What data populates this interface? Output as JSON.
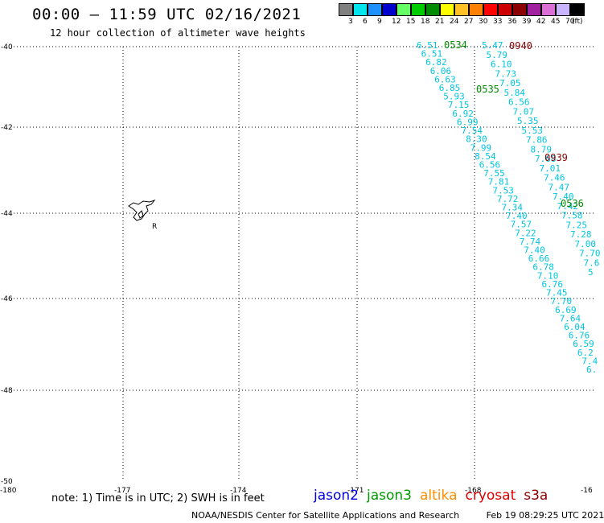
{
  "header": {
    "title": "00:00 – 11:59 UTC 02/16/2021",
    "subtitle": "12 hour collection of altimeter wave heights"
  },
  "legend": {
    "unit": "(ft)",
    "levels": [
      {
        "label": "3",
        "color": "#808080"
      },
      {
        "label": "6",
        "color": "#00e5ee"
      },
      {
        "label": "9",
        "color": "#1e90ff"
      },
      {
        "label": "12",
        "color": "#0000cd"
      },
      {
        "label": "15",
        "color": "#66ff66"
      },
      {
        "label": "18",
        "color": "#00cd00"
      },
      {
        "label": "21",
        "color": "#008b00"
      },
      {
        "label": "24",
        "color": "#ffff00"
      },
      {
        "label": "27",
        "color": "#ffc125"
      },
      {
        "label": "30",
        "color": "#ff7f00"
      },
      {
        "label": "33",
        "color": "#ff0000"
      },
      {
        "label": "36",
        "color": "#cd0000"
      },
      {
        "label": "39",
        "color": "#8b0000"
      },
      {
        "label": "42",
        "color": "#a020a0"
      },
      {
        "label": "45",
        "color": "#da70d6"
      },
      {
        "label": "70",
        "color": "#c8b4ff"
      },
      {
        "label": "",
        "color": "#000000"
      }
    ]
  },
  "axes": {
    "lat_labels": [
      "-40",
      "-42",
      "-44",
      "-46",
      "-48",
      "-50"
    ],
    "lon_labels": [
      "-180",
      "-177",
      "-174",
      "-171",
      "-168",
      "-16"
    ]
  },
  "tracks": {
    "colors": {
      "swh": "#00c5e0",
      "jason3_time": "#008b00",
      "cryosat_time": "#8b0000"
    },
    "time_labels": [
      {
        "text": "0534",
        "mission": "jason3"
      },
      {
        "text": "0940",
        "mission": "cryosat"
      },
      {
        "text": "0535",
        "mission": "jason3"
      },
      {
        "text": "0939",
        "mission": "cryosat"
      },
      {
        "text": "0536",
        "mission": "jason3"
      }
    ],
    "track_a": [
      "6.51",
      "6.51",
      "6.82",
      "6.06",
      "6.63",
      "6.85",
      "5.93",
      "7.15",
      "6.92",
      "6.99",
      "7.54",
      "8.30",
      "7.99",
      "8.54",
      "6.56",
      "7.55",
      "7.81",
      "7.53",
      "7.72",
      "7.34",
      "7.40",
      "7.57",
      "7.22",
      "7.74",
      "7.40",
      "6.66",
      "6.78",
      "7.10",
      "6.76",
      "7.45",
      "7.70",
      "6.69",
      "7.64",
      "6.04",
      "6.76",
      "6.59",
      "6.2",
      "7.4",
      "6."
    ],
    "track_b": [
      "5.47",
      "5.79",
      "6.10",
      "7.73",
      "7.05",
      "5.84",
      "6.56",
      "7.07",
      "5.35",
      "5.53",
      "7.86",
      "8.79",
      "7.68",
      "7.01",
      "7.46",
      "7.47",
      "7.40",
      "7.42",
      "7.58",
      "7.25",
      "7.28",
      "7.00",
      "7.70",
      "7.6",
      "5"
    ]
  },
  "island": {
    "label": "R"
  },
  "note": "note: 1) Time is in UTC; 2) SWH is in feet",
  "missions": [
    {
      "name": "jason2",
      "color": "#0000dd"
    },
    {
      "name": "jason3",
      "color": "#009900"
    },
    {
      "name": "altika",
      "color": "#ff8c00"
    },
    {
      "name": "cryosat",
      "color": "#dd0000"
    },
    {
      "name": "s3a",
      "color": "#8b0000"
    }
  ],
  "footer": {
    "credit": "NOAA/NESDIS Center for Satellite Applications and Research",
    "timestamp": "Feb 19 08:29:25 UTC 2021"
  }
}
